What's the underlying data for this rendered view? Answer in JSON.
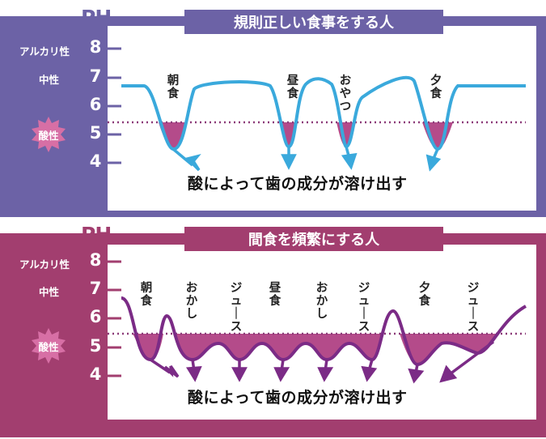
{
  "colors": {
    "regular_frame": "#6c62a6",
    "regular_curve": "#3aa9dc",
    "regular_fill": "#b44b8a",
    "frequent_frame": "#a23e6f",
    "frequent_curve": "#7b2b86",
    "frequent_fill": "#b44b8a",
    "dotted_line": "#8b3a78",
    "acid_badge": "#d76fa5"
  },
  "panels": [
    {
      "id": "regular",
      "ph_label": "PH",
      "title": "規則正しい食事をする人",
      "side_labels": {
        "alkaline": "アルカリ性",
        "neutral": "中性",
        "acidic": "酸性"
      },
      "ticks": [
        "8",
        "7",
        "6",
        "5",
        "4"
      ],
      "meal_labels": [
        "朝食",
        "昼食",
        "おやつ",
        "夕食"
      ],
      "caption": "酸によって歯の成分が溶け出す",
      "critical_ph": 5.5
    },
    {
      "id": "frequent",
      "ph_label": "PH",
      "title": "間食を頻繁にする人",
      "side_labels": {
        "alkaline": "アルカリ性",
        "neutral": "中性",
        "acidic": "酸性"
      },
      "ticks": [
        "8",
        "7",
        "6",
        "5",
        "4"
      ],
      "meal_labels": [
        "朝食",
        "おかし",
        "ジュース",
        "昼食",
        "おかし",
        "ジュース",
        "夕食",
        "ジュース"
      ],
      "caption": "酸によって歯の成分が溶け出す",
      "critical_ph": 5.5
    }
  ]
}
